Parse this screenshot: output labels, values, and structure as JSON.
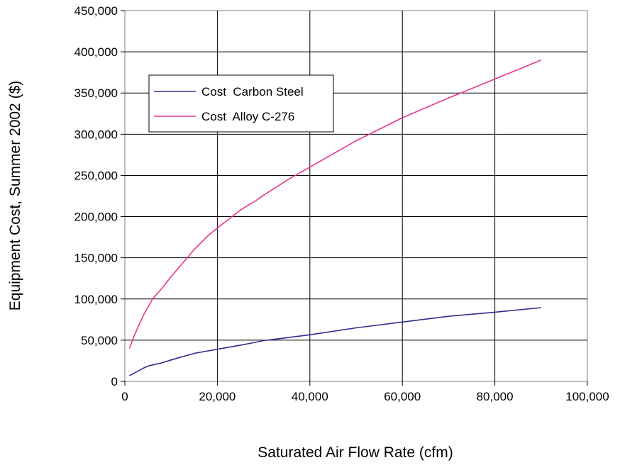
{
  "chart_data": {
    "type": "line",
    "title": "",
    "xlabel": "Saturated Air Flow Rate (cfm)",
    "ylabel": "Equipment Cost, Summer 2002 ($)",
    "xlim": [
      0,
      100000
    ],
    "ylim": [
      0,
      450000
    ],
    "x_ticks": [
      0,
      20000,
      40000,
      60000,
      80000,
      100000
    ],
    "x_tick_labels": [
      "0",
      "20,000",
      "40,000",
      "60,000",
      "80,000",
      "100,000"
    ],
    "y_ticks": [
      0,
      50000,
      100000,
      150000,
      200000,
      250000,
      300000,
      350000,
      400000,
      450000
    ],
    "y_tick_labels": [
      "0",
      "50,000",
      "100,000",
      "150,000",
      "200,000",
      "250,000",
      "300,000",
      "350,000",
      "400,000",
      "450,000"
    ],
    "grid": true,
    "legend_position": "upper-left inside plot",
    "series": [
      {
        "name": "Cost  Carbon Steel",
        "color": "#2E2E8C",
        "x": [
          1000,
          2000,
          3000,
          4000,
          5000,
          6000,
          8000,
          10000,
          15000,
          20000,
          25000,
          27000,
          30000,
          35000,
          40000,
          50000,
          60000,
          70000,
          80000,
          90000
        ],
        "y": [
          7000,
          10000,
          13000,
          16000,
          18500,
          20000,
          22500,
          26000,
          34000,
          39000,
          44000,
          46000,
          49500,
          53000,
          56500,
          65000,
          72000,
          79000,
          84000,
          89500
        ]
      },
      {
        "name": "Cost  Alloy C-276",
        "color": "#E8358F",
        "x": [
          1000,
          2000,
          3000,
          4000,
          5000,
          6000,
          8000,
          10000,
          15000,
          18000,
          20000,
          25000,
          27000,
          28000,
          30000,
          32000,
          35000,
          40000,
          50000,
          60000,
          70000,
          80000,
          90000
        ],
        "y": [
          40000,
          55000,
          68000,
          80000,
          90000,
          100000,
          113000,
          127000,
          160000,
          177000,
          186000,
          208000,
          215000,
          218000,
          226000,
          233000,
          244000,
          260000,
          292000,
          320000,
          344000,
          367000,
          390000
        ]
      }
    ]
  }
}
